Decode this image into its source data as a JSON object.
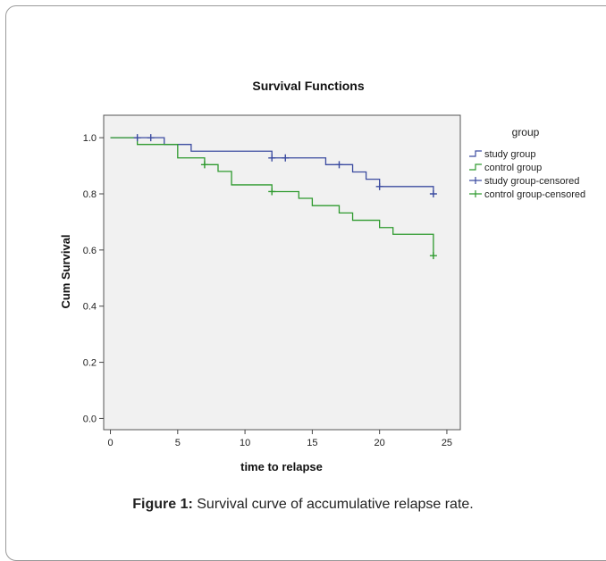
{
  "chart_data": {
    "type": "line",
    "title": "Survival Functions",
    "xlabel": "time to relapse",
    "ylabel": "Cum Survival",
    "xlim": [
      -0.5,
      26
    ],
    "ylim": [
      -0.04,
      1.08
    ],
    "x_ticks": [
      0,
      5,
      10,
      15,
      20,
      25
    ],
    "x_tick_labels": [
      "0",
      "5",
      "10",
      "15",
      "20",
      "25"
    ],
    "y_ticks": [
      0.0,
      0.2,
      0.4,
      0.6,
      0.8,
      1.0
    ],
    "y_tick_labels": [
      "0.0",
      "0.2",
      "0.4",
      "0.6",
      "0.8",
      "1.0"
    ],
    "grid": false,
    "legend_title": "group",
    "legend_position": "right",
    "series": [
      {
        "name": "study group",
        "color": "#3b4ba0",
        "steps": [
          [
            0,
            1.0
          ],
          [
            4,
            0.976
          ],
          [
            6,
            0.952
          ],
          [
            12,
            0.928
          ],
          [
            16,
            0.904
          ],
          [
            18,
            0.878
          ],
          [
            19,
            0.852
          ],
          [
            20,
            0.826
          ],
          [
            24,
            0.8
          ]
        ]
      },
      {
        "name": "control group",
        "color": "#2e9a2e",
        "steps": [
          [
            0,
            1.0
          ],
          [
            2,
            0.976
          ],
          [
            5,
            0.928
          ],
          [
            7,
            0.904
          ],
          [
            8,
            0.88
          ],
          [
            9,
            0.832
          ],
          [
            12,
            0.808
          ],
          [
            14,
            0.784
          ],
          [
            15,
            0.758
          ],
          [
            17,
            0.732
          ],
          [
            18,
            0.706
          ],
          [
            20,
            0.68
          ],
          [
            21,
            0.656
          ],
          [
            24,
            0.58
          ]
        ]
      }
    ],
    "censored": [
      {
        "name": "study group-censored",
        "color": "#3b4ba0",
        "points": [
          [
            2,
            1.0
          ],
          [
            3,
            1.0
          ],
          [
            12,
            0.928
          ],
          [
            13,
            0.928
          ],
          [
            17,
            0.904
          ],
          [
            20,
            0.826
          ],
          [
            24,
            0.8
          ]
        ]
      },
      {
        "name": "control group-censored",
        "color": "#2e9a2e",
        "points": [
          [
            7,
            0.904
          ],
          [
            12,
            0.808
          ],
          [
            24,
            0.58
          ]
        ]
      }
    ]
  },
  "caption": {
    "label": "Figure 1:",
    "text": " Survival curve of accumulative relapse rate."
  }
}
